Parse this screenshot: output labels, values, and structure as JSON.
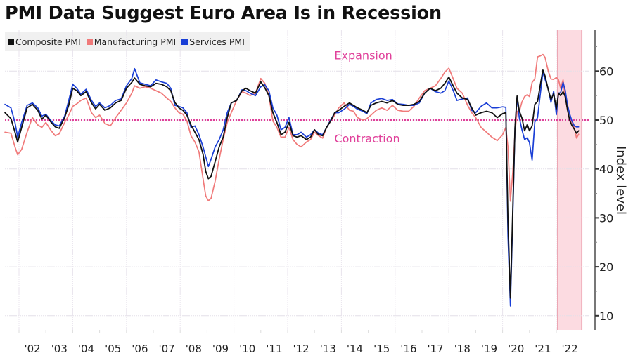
{
  "chart_data": {
    "type": "line",
    "title": "PMI Data Suggest Euro Area Is in Recession",
    "xlabel": "",
    "ylabel": "Index level",
    "ylim": [
      7,
      68
    ],
    "xlim": [
      2001.48,
      2022.9
    ],
    "y_ticks": [
      10,
      20,
      30,
      40,
      50,
      60
    ],
    "x_tick_labels": [
      "'02",
      "'03",
      "'04",
      "'05",
      "'06",
      "'07",
      "'08",
      "'09",
      "'10",
      "'11",
      "'12",
      "'13",
      "'14",
      "'15",
      "'16",
      "'17",
      "'18",
      "'19",
      "'20",
      "'21",
      "'22"
    ],
    "x_tick_years": [
      2002,
      2003,
      2004,
      2005,
      2006,
      2007,
      2008,
      2009,
      2010,
      2011,
      2012,
      2013,
      2014,
      2015,
      2016,
      2017,
      2018,
      2019,
      2020,
      2021,
      2022
    ],
    "grid": true,
    "legend_position": "top-left",
    "reference_line": {
      "value": 50,
      "color": "#e0409a",
      "style": "dotted"
    },
    "annotations": [
      {
        "text": "Expansion",
        "x": 2014.0,
        "y": 63.3
      },
      {
        "text": "Contraction",
        "x": 2014.0,
        "y": 46.3
      }
    ],
    "shaded_region": {
      "x_start": 2022.0,
      "x_end": 2022.95,
      "color": "#fbd5dc"
    },
    "series": [
      {
        "name": "Composite PMI",
        "color": "#111111",
        "x": [
          2001.48,
          2001.7,
          2001.85,
          2001.95,
          2002.1,
          2002.3,
          2002.5,
          2002.7,
          2002.85,
          2003.0,
          2003.2,
          2003.35,
          2003.5,
          2003.7,
          2003.85,
          2004.0,
          2004.15,
          2004.3,
          2004.5,
          2004.7,
          2004.85,
          2005.0,
          2005.2,
          2005.4,
          2005.6,
          2005.8,
          2006.0,
          2006.2,
          2006.3,
          2006.5,
          2006.7,
          2006.9,
          2007.1,
          2007.3,
          2007.5,
          2007.65,
          2007.8,
          2007.95,
          2008.1,
          2008.25,
          2008.4,
          2008.55,
          2008.7,
          2008.85,
          2008.95,
          2009.05,
          2009.15,
          2009.3,
          2009.45,
          2009.6,
          2009.75,
          2009.9,
          2010.1,
          2010.3,
          2010.45,
          2010.6,
          2010.8,
          2011.0,
          2011.15,
          2011.3,
          2011.45,
          2011.6,
          2011.75,
          2011.9,
          2012.05,
          2012.2,
          2012.35,
          2012.5,
          2012.7,
          2012.85,
          2013.0,
          2013.15,
          2013.3,
          2013.45,
          2013.6,
          2013.75,
          2013.9,
          2014.1,
          2014.3,
          2014.45,
          2014.6,
          2014.8,
          2014.95,
          2015.1,
          2015.3,
          2015.5,
          2015.7,
          2015.9,
          2016.1,
          2016.3,
          2016.5,
          2016.7,
          2016.9,
          2017.1,
          2017.3,
          2017.5,
          2017.7,
          2017.85,
          2018.0,
          2018.15,
          2018.3,
          2018.5,
          2018.7,
          2018.85,
          2019.0,
          2019.2,
          2019.4,
          2019.6,
          2019.8,
          2020.0,
          2020.12,
          2020.2,
          2020.29,
          2020.38,
          2020.46,
          2020.54,
          2020.62,
          2020.72,
          2020.82,
          2020.92,
          2021.0,
          2021.1,
          2021.2,
          2021.3,
          2021.4,
          2021.5,
          2021.58,
          2021.7,
          2021.8,
          2021.9,
          2022.0,
          2022.08,
          2022.16,
          2022.25,
          2022.33,
          2022.42,
          2022.5,
          2022.58,
          2022.67,
          2022.75,
          2022.83
        ],
        "values": [
          51.5,
          50.3,
          47.5,
          45.5,
          48.5,
          52.5,
          53.2,
          52.0,
          50.2,
          51.0,
          49.5,
          48.6,
          48.3,
          50.5,
          53.0,
          56.5,
          56.0,
          55.0,
          55.8,
          53.5,
          52.3,
          53.2,
          52.0,
          52.5,
          53.5,
          54.0,
          56.5,
          57.7,
          58.6,
          57.3,
          57.0,
          56.8,
          57.5,
          57.3,
          56.8,
          56.0,
          53.6,
          52.5,
          52.0,
          51.0,
          49.0,
          47.5,
          46.0,
          43.0,
          39.5,
          38.0,
          38.5,
          41.5,
          44.5,
          46.5,
          50.5,
          53.5,
          54.0,
          56.0,
          56.5,
          56.0,
          55.5,
          57.8,
          56.6,
          55.0,
          51.5,
          49.5,
          47.0,
          47.5,
          49.5,
          46.8,
          46.5,
          46.8,
          46.0,
          46.5,
          48.0,
          47.0,
          46.8,
          48.5,
          49.8,
          51.5,
          52.0,
          52.8,
          53.5,
          53.0,
          52.5,
          52.0,
          51.5,
          53.0,
          53.5,
          53.8,
          53.5,
          54.0,
          53.2,
          53.0,
          53.0,
          53.2,
          53.8,
          55.5,
          56.5,
          56.0,
          56.5,
          57.5,
          58.8,
          57.1,
          55.5,
          54.5,
          54.2,
          52.5,
          51.0,
          51.5,
          51.8,
          51.5,
          50.5,
          51.3,
          51.5,
          29.7,
          13.6,
          31.9,
          48.5,
          54.9,
          51.9,
          50.4,
          47.8,
          49.1,
          47.8,
          48.8,
          53.2,
          53.8,
          57.1,
          60.2,
          59.0,
          56.2,
          54.2,
          55.4,
          52.3,
          55.5,
          55.0,
          55.8,
          54.8,
          52.0,
          49.9,
          48.9,
          48.1,
          47.3,
          47.8
        ]
      },
      {
        "name": "Manufacturing PMI",
        "color": "#f07a7a",
        "x": [
          2001.48,
          2001.7,
          2001.85,
          2001.95,
          2002.1,
          2002.3,
          2002.5,
          2002.7,
          2002.85,
          2003.0,
          2003.2,
          2003.35,
          2003.5,
          2003.7,
          2003.85,
          2004.0,
          2004.15,
          2004.3,
          2004.5,
          2004.7,
          2004.85,
          2005.0,
          2005.2,
          2005.4,
          2005.6,
          2005.8,
          2006.0,
          2006.2,
          2006.3,
          2006.5,
          2006.7,
          2006.9,
          2007.1,
          2007.3,
          2007.5,
          2007.65,
          2007.8,
          2007.95,
          2008.1,
          2008.25,
          2008.4,
          2008.55,
          2008.7,
          2008.85,
          2008.95,
          2009.05,
          2009.15,
          2009.3,
          2009.45,
          2009.6,
          2009.75,
          2009.9,
          2010.1,
          2010.3,
          2010.45,
          2010.6,
          2010.8,
          2011.0,
          2011.15,
          2011.3,
          2011.45,
          2011.6,
          2011.75,
          2011.9,
          2012.05,
          2012.2,
          2012.35,
          2012.5,
          2012.7,
          2012.85,
          2013.0,
          2013.15,
          2013.3,
          2013.45,
          2013.6,
          2013.75,
          2013.9,
          2014.1,
          2014.3,
          2014.45,
          2014.6,
          2014.8,
          2014.95,
          2015.1,
          2015.3,
          2015.5,
          2015.7,
          2015.9,
          2016.1,
          2016.3,
          2016.5,
          2016.7,
          2016.9,
          2017.1,
          2017.3,
          2017.5,
          2017.7,
          2017.85,
          2018.0,
          2018.15,
          2018.3,
          2018.5,
          2018.7,
          2018.85,
          2019.0,
          2019.2,
          2019.4,
          2019.6,
          2019.8,
          2020.0,
          2020.12,
          2020.2,
          2020.29,
          2020.38,
          2020.46,
          2020.54,
          2020.62,
          2020.72,
          2020.82,
          2020.92,
          2021.0,
          2021.1,
          2021.2,
          2021.3,
          2021.4,
          2021.5,
          2021.58,
          2021.7,
          2021.8,
          2021.9,
          2022.0,
          2022.08,
          2022.16,
          2022.25,
          2022.33,
          2022.42,
          2022.5,
          2022.58,
          2022.67,
          2022.75,
          2022.83
        ],
        "values": [
          47.5,
          47.3,
          44.5,
          42.9,
          44.0,
          47.5,
          50.5,
          49.0,
          48.5,
          49.5,
          47.8,
          46.8,
          47.2,
          49.5,
          51.0,
          52.8,
          53.3,
          54.0,
          54.5,
          51.5,
          50.5,
          51.0,
          49.3,
          48.8,
          50.5,
          52.0,
          53.5,
          55.5,
          57.0,
          56.5,
          56.8,
          56.5,
          56.0,
          55.5,
          54.5,
          53.8,
          52.5,
          51.5,
          51.2,
          49.8,
          46.8,
          45.5,
          43.5,
          38.0,
          34.5,
          33.5,
          34.0,
          37.5,
          42.0,
          46.0,
          49.5,
          51.5,
          54.0,
          55.8,
          55.5,
          55.0,
          55.5,
          58.5,
          57.5,
          55.0,
          49.8,
          48.5,
          46.5,
          46.5,
          48.5,
          46.0,
          45.0,
          44.5,
          45.5,
          46.0,
          47.5,
          46.8,
          46.3,
          48.5,
          49.8,
          51.0,
          52.5,
          53.5,
          52.0,
          51.8,
          50.5,
          50.0,
          50.3,
          51.0,
          52.0,
          52.5,
          52.0,
          53.0,
          52.0,
          51.8,
          51.8,
          52.8,
          54.5,
          56.0,
          56.5,
          57.0,
          58.5,
          59.8,
          60.6,
          58.6,
          56.5,
          55.5,
          53.0,
          51.5,
          50.5,
          48.5,
          47.5,
          46.5,
          45.8,
          47.0,
          48.5,
          44.5,
          33.4,
          39.4,
          47.4,
          51.8,
          51.7,
          53.7,
          54.8,
          55.2,
          54.8,
          57.7,
          58.4,
          62.9,
          63.1,
          63.4,
          62.8,
          60.0,
          58.4,
          58.3,
          58.7,
          58.2,
          56.5,
          58.2,
          54.6,
          52.1,
          49.8,
          49.6,
          48.4,
          46.3,
          47.1
        ]
      },
      {
        "name": "Services PMI",
        "color": "#1a3fd6",
        "x": [
          2001.48,
          2001.7,
          2001.85,
          2001.95,
          2002.1,
          2002.3,
          2002.5,
          2002.7,
          2002.85,
          2003.0,
          2003.2,
          2003.35,
          2003.5,
          2003.7,
          2003.85,
          2004.0,
          2004.15,
          2004.3,
          2004.5,
          2004.7,
          2004.85,
          2005.0,
          2005.2,
          2005.4,
          2005.6,
          2005.8,
          2006.0,
          2006.2,
          2006.3,
          2006.5,
          2006.7,
          2006.9,
          2007.1,
          2007.3,
          2007.5,
          2007.65,
          2007.8,
          2007.95,
          2008.1,
          2008.25,
          2008.4,
          2008.55,
          2008.7,
          2008.85,
          2008.95,
          2009.05,
          2009.15,
          2009.3,
          2009.45,
          2009.6,
          2009.75,
          2009.9,
          2010.1,
          2010.3,
          2010.45,
          2010.6,
          2010.8,
          2011.0,
          2011.15,
          2011.3,
          2011.45,
          2011.6,
          2011.75,
          2011.9,
          2012.05,
          2012.2,
          2012.35,
          2012.5,
          2012.7,
          2012.85,
          2013.0,
          2013.15,
          2013.3,
          2013.45,
          2013.6,
          2013.75,
          2013.9,
          2014.1,
          2014.3,
          2014.45,
          2014.6,
          2014.8,
          2014.95,
          2015.1,
          2015.3,
          2015.5,
          2015.7,
          2015.9,
          2016.1,
          2016.3,
          2016.5,
          2016.7,
          2016.9,
          2017.1,
          2017.3,
          2017.5,
          2017.7,
          2017.85,
          2018.0,
          2018.15,
          2018.3,
          2018.5,
          2018.7,
          2018.85,
          2019.0,
          2019.2,
          2019.4,
          2019.6,
          2019.8,
          2020.0,
          2020.12,
          2020.2,
          2020.29,
          2020.38,
          2020.46,
          2020.54,
          2020.62,
          2020.72,
          2020.82,
          2020.92,
          2021.0,
          2021.1,
          2021.2,
          2021.3,
          2021.4,
          2021.5,
          2021.58,
          2021.7,
          2021.8,
          2021.9,
          2022.0,
          2022.08,
          2022.16,
          2022.25,
          2022.33,
          2022.42,
          2022.5,
          2022.58,
          2022.67,
          2022.75,
          2022.83
        ],
        "values": [
          53.2,
          52.5,
          49.5,
          46.5,
          49.5,
          53.0,
          53.5,
          52.5,
          50.8,
          51.2,
          49.8,
          49.0,
          48.8,
          50.8,
          54.0,
          57.3,
          56.5,
          55.3,
          56.3,
          54.0,
          52.8,
          53.5,
          52.5,
          53.0,
          54.0,
          54.3,
          57.0,
          58.5,
          60.5,
          57.6,
          57.3,
          57.0,
          58.2,
          57.8,
          57.5,
          56.5,
          53.0,
          52.8,
          52.5,
          51.5,
          48.5,
          48.8,
          47.0,
          44.5,
          42.5,
          40.5,
          42.0,
          44.5,
          46.0,
          48.0,
          51.5,
          53.5,
          54.0,
          56.2,
          56.0,
          55.5,
          55.0,
          56.8,
          57.2,
          56.0,
          52.5,
          51.0,
          48.0,
          48.5,
          50.5,
          47.0,
          47.0,
          47.5,
          46.5,
          47.0,
          48.0,
          47.3,
          47.0,
          48.5,
          50.0,
          51.5,
          51.5,
          52.2,
          53.2,
          52.8,
          52.2,
          51.8,
          51.3,
          53.5,
          54.2,
          54.4,
          54.0,
          54.2,
          53.3,
          53.2,
          53.0,
          53.0,
          53.5,
          55.5,
          56.5,
          55.8,
          55.5,
          56.0,
          58.0,
          56.2,
          54.0,
          54.3,
          54.5,
          52.0,
          51.5,
          52.8,
          53.5,
          52.5,
          52.5,
          52.7,
          52.6,
          26.4,
          12.0,
          30.5,
          48.3,
          54.7,
          50.5,
          48.0,
          46.0,
          46.4,
          45.4,
          41.8,
          49.6,
          50.5,
          55.2,
          59.8,
          58.3,
          56.4,
          53.6,
          55.9,
          51.1,
          55.5,
          55.6,
          57.7,
          56.1,
          53.0,
          51.2,
          49.8,
          48.8,
          48.6,
          48.6
        ]
      }
    ]
  }
}
